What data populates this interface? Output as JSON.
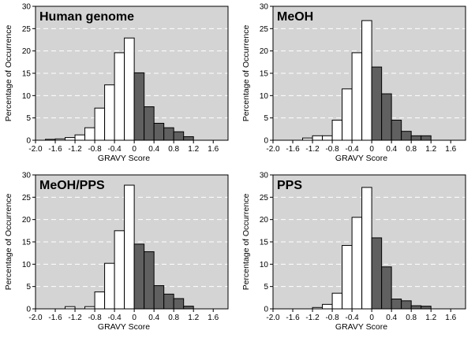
{
  "chart_data": [
    {
      "type": "bar",
      "title": "Human genome",
      "xlabel": "GRAVY Score",
      "ylabel": "Percentage of Occurrence",
      "ylim": [
        0,
        30
      ],
      "yticks": [
        "0",
        "5",
        "10",
        "15",
        "20",
        "25",
        "30"
      ],
      "xticks": [
        "-2.0",
        "-1.6",
        "-1.2",
        "-0.8",
        "-0.4",
        "0",
        "0.4",
        "0.8",
        "1.2",
        "1.6"
      ],
      "x": [
        -1.7,
        -1.5,
        -1.3,
        -1.1,
        -0.9,
        -0.7,
        -0.5,
        -0.3,
        -0.1,
        0.1,
        0.3,
        0.5,
        0.7,
        0.9,
        1.1
      ],
      "values": [
        0.2,
        0.3,
        0.6,
        1.2,
        2.8,
        7.2,
        12.4,
        19.6,
        22.9,
        15.1,
        7.5,
        3.8,
        2.8,
        1.9,
        0.8
      ],
      "grid": "horizontal-dashed",
      "colors": {
        "negative": "#ffffff",
        "positive": "#606060",
        "background": "#d4d4d4"
      }
    },
    {
      "type": "bar",
      "title": "MeOH",
      "xlabel": "GRAVY Score",
      "ylabel": "Percentage of Occurrence",
      "ylim": [
        0,
        30
      ],
      "yticks": [
        "0",
        "5",
        "10",
        "15",
        "20",
        "25",
        "30"
      ],
      "xticks": [
        "-2.0",
        "-1.6",
        "-1.2",
        "-0.8",
        "-0.4",
        "0",
        "0.4",
        "0.8",
        "1.2",
        "1.6"
      ],
      "x": [
        -1.7,
        -1.5,
        -1.3,
        -1.1,
        -0.9,
        -0.7,
        -0.5,
        -0.3,
        -0.1,
        0.1,
        0.3,
        0.5,
        0.7,
        0.9,
        1.1
      ],
      "values": [
        0,
        0,
        0.5,
        1.0,
        1.0,
        4.5,
        11.5,
        19.6,
        26.8,
        16.4,
        10.4,
        4.5,
        2.0,
        1.0,
        1.0
      ],
      "grid": "horizontal-dashed",
      "colors": {
        "negative": "#ffffff",
        "positive": "#606060",
        "background": "#d4d4d4"
      }
    },
    {
      "type": "bar",
      "title": "MeOH/PPS",
      "xlabel": "GRAVY Score",
      "ylabel": "Percentage of Occurrence",
      "ylim": [
        0,
        30
      ],
      "yticks": [
        "0",
        "5",
        "10",
        "15",
        "20",
        "25",
        "30"
      ],
      "xticks": [
        "-2.0",
        "-1.6",
        "-1.2",
        "-0.8",
        "-0.4",
        "0",
        "0.4",
        "0.8",
        "1.2",
        "1.6"
      ],
      "x": [
        -1.7,
        -1.5,
        -1.3,
        -1.1,
        -0.9,
        -0.7,
        -0.5,
        -0.3,
        -0.1,
        0.1,
        0.3,
        0.5,
        0.7,
        0.9,
        1.1
      ],
      "values": [
        0,
        0,
        0.5,
        0,
        0.5,
        3.8,
        10.2,
        17.5,
        27.7,
        14.5,
        12.8,
        5.2,
        3.3,
        2.3,
        0.6
      ],
      "grid": "horizontal-dashed",
      "colors": {
        "negative": "#ffffff",
        "positive": "#606060",
        "background": "#d4d4d4"
      }
    },
    {
      "type": "bar",
      "title": "PPS",
      "xlabel": "GRAVY Score",
      "ylabel": "Percentage of Occurrence",
      "ylim": [
        0,
        30
      ],
      "yticks": [
        "0",
        "5",
        "10",
        "15",
        "20",
        "25",
        "30"
      ],
      "xticks": [
        "-2.0",
        "-1.6",
        "-1.2",
        "-0.8",
        "-0.4",
        "0",
        "0.4",
        "0.8",
        "1.2",
        "1.6"
      ],
      "x": [
        -1.7,
        -1.5,
        -1.3,
        -1.1,
        -0.9,
        -0.7,
        -0.5,
        -0.3,
        -0.1,
        0.1,
        0.3,
        0.5,
        0.7,
        0.9,
        1.1
      ],
      "values": [
        0,
        0,
        0,
        0.3,
        1.0,
        3.5,
        14.2,
        20.5,
        27.2,
        15.9,
        9.4,
        2.2,
        1.8,
        0.7,
        0.6
      ],
      "grid": "horizontal-dashed",
      "colors": {
        "negative": "#ffffff",
        "positive": "#606060",
        "background": "#d4d4d4"
      }
    }
  ]
}
